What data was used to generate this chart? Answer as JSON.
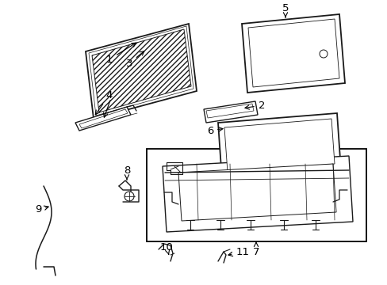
{
  "bg_color": "#ffffff",
  "fig_width": 4.89,
  "fig_height": 3.6,
  "dpi": 100,
  "line_color": "#1a1a1a",
  "label_color": "#000000",
  "label_fontsize": 9.5
}
